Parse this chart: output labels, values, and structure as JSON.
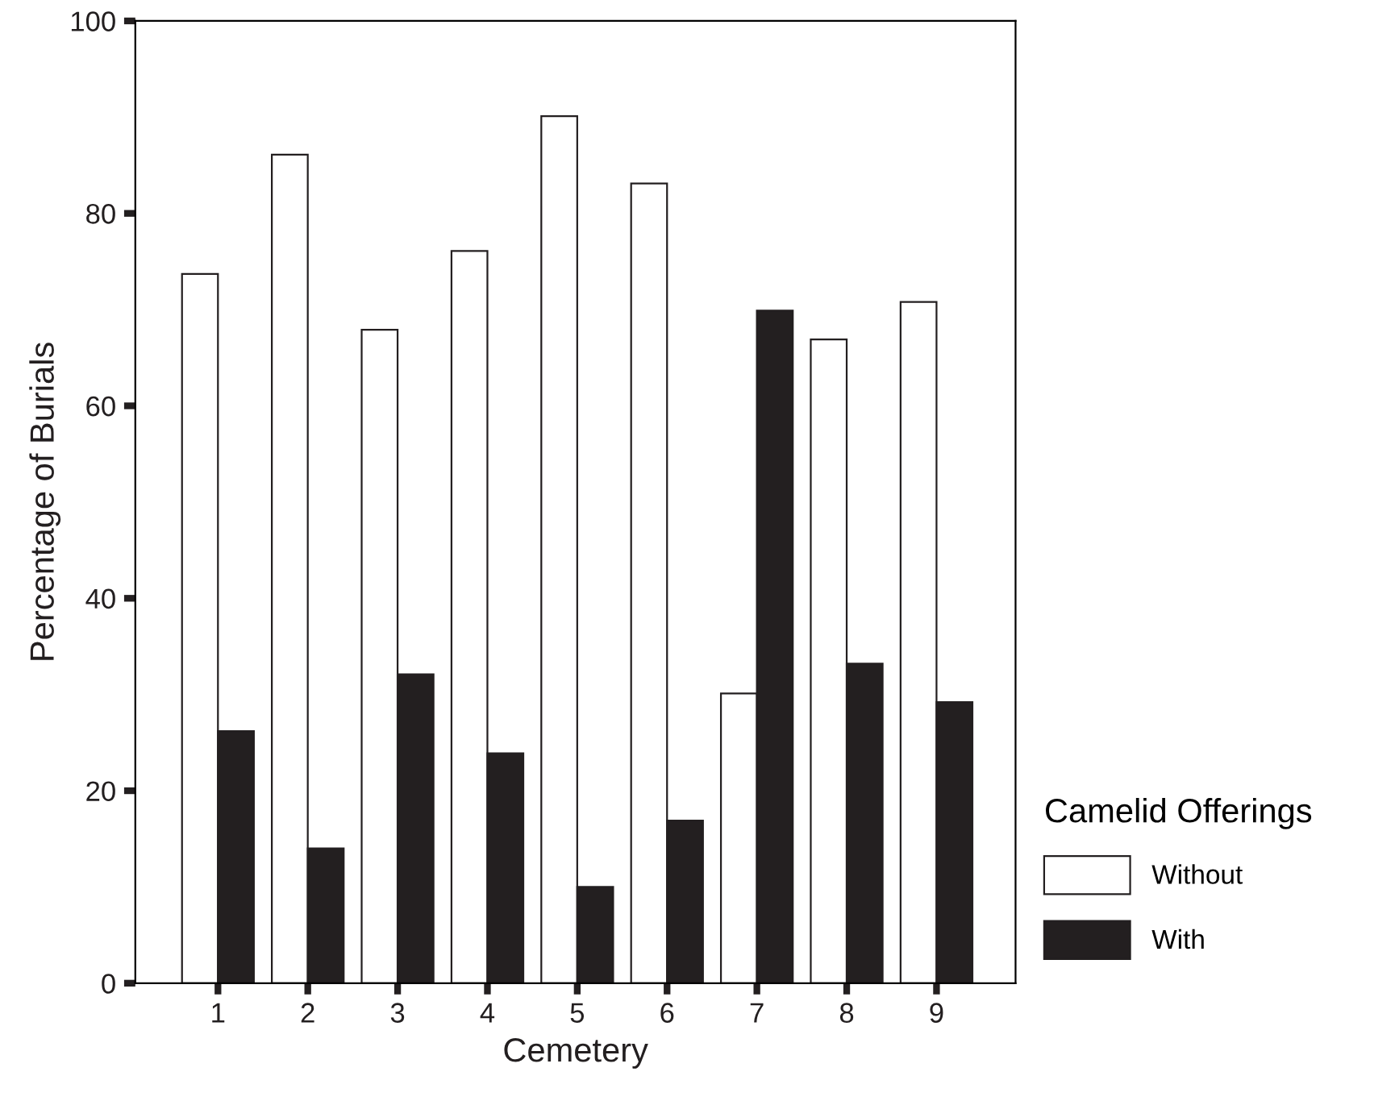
{
  "chart_data": {
    "type": "bar",
    "xlabel": "Cemetery",
    "ylabel": "Percentage of Burials",
    "legend_title": "Camelid Offerings",
    "categories": [
      "1",
      "2",
      "3",
      "4",
      "5",
      "6",
      "7",
      "8",
      "9"
    ],
    "series": [
      {
        "name": "Without",
        "color": "#ffffff",
        "values": [
          73.7,
          86.1,
          67.9,
          76.1,
          90.1,
          83.1,
          30.1,
          66.9,
          70.8
        ]
      },
      {
        "name": "With",
        "color": "#231f20",
        "values": [
          26.2,
          14.0,
          32.1,
          23.9,
          10.0,
          16.9,
          69.9,
          33.2,
          29.2
        ]
      }
    ],
    "ylim": [
      0,
      100
    ],
    "yticks": [
      0,
      20,
      40,
      60,
      80,
      100
    ],
    "grid": false,
    "legend": "right"
  }
}
